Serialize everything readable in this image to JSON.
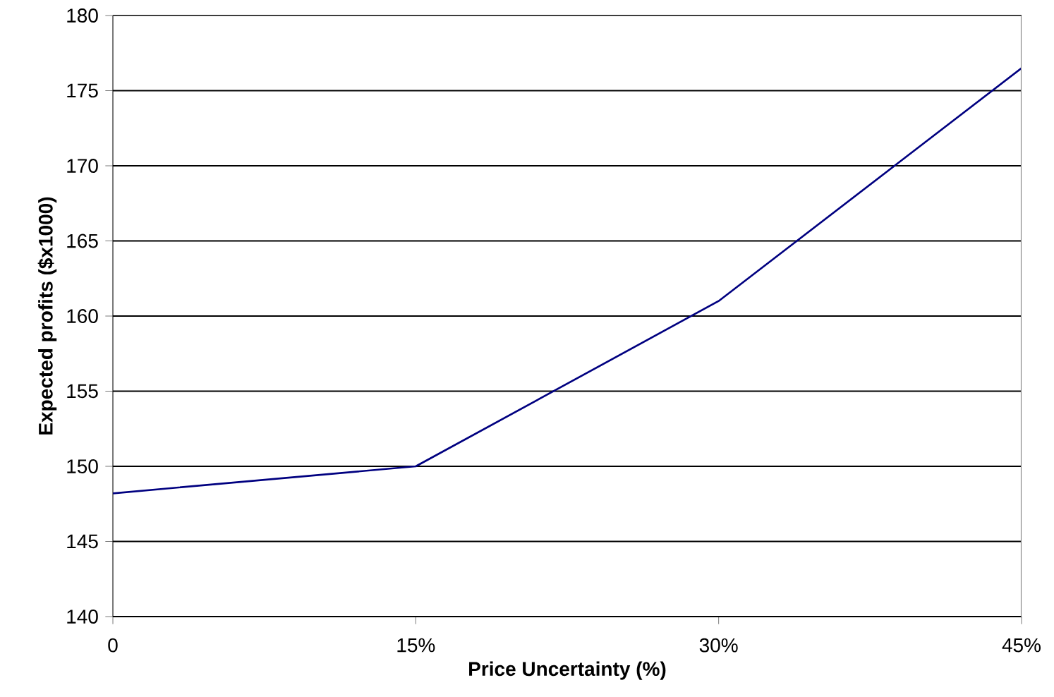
{
  "chart_data": {
    "type": "line",
    "xlabel": "Price Uncertainty (%)",
    "ylabel": "Expected profits ($x1000)",
    "x": [
      0,
      15,
      30,
      45
    ],
    "series": [
      {
        "color": "#000080",
        "values": [
          148.2,
          150,
          161,
          176.5
        ]
      }
    ],
    "xlim": [
      0,
      45
    ],
    "ylim": [
      140,
      180
    ],
    "xticks": [
      0,
      {
        "value": 15,
        "label": "15%"
      },
      {
        "value": 30,
        "label": "30%"
      },
      {
        "value": 45,
        "label": "45%"
      }
    ],
    "yticks": [
      140,
      145,
      150,
      155,
      160,
      165,
      170,
      175,
      180
    ],
    "grid": "y",
    "marker": "none",
    "line_style": "solid"
  }
}
